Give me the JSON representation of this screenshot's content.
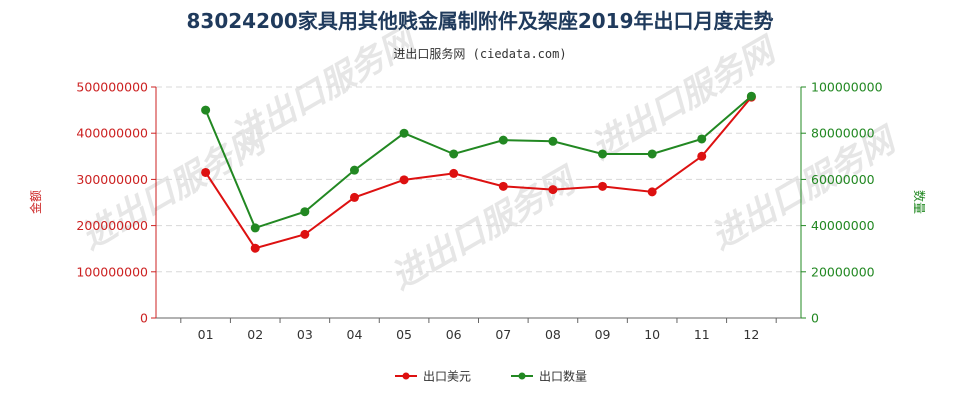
{
  "chart_data": {
    "type": "line",
    "title": "83024200家具用其他贱金属制附件及架座2019年出口月度走势",
    "subtitle": "进出口服务网 (ciedata.com)",
    "categories": [
      "01",
      "02",
      "03",
      "04",
      "05",
      "06",
      "07",
      "08",
      "09",
      "10",
      "11",
      "12"
    ],
    "y_left": {
      "label": "金额",
      "range": [
        0,
        500000000
      ],
      "ticks": [
        "0",
        "100000000",
        "200000000",
        "300000000",
        "400000000",
        "500000000"
      ],
      "color": "#dd1111"
    },
    "y_right": {
      "label": "数量",
      "range": [
        0,
        100000000
      ],
      "ticks": [
        "0",
        "20000000",
        "40000000",
        "60000000",
        "80000000",
        "100000000"
      ],
      "color": "#228822"
    },
    "series": [
      {
        "name": "出口美元",
        "axis": "left",
        "color": "#dd1111",
        "values": [
          315000000,
          151000000,
          181000000,
          261000000,
          299000000,
          313000000,
          285000000,
          278000000,
          285000000,
          273000000,
          350000000,
          478000000
        ]
      },
      {
        "name": "出口数量",
        "axis": "right",
        "color": "#228822",
        "values": [
          90000000,
          39000000,
          46000000,
          64000000,
          80000000,
          71000000,
          77000000,
          76500000,
          71000000,
          71000000,
          77500000,
          96000000
        ]
      }
    ],
    "grid": "horizontal",
    "legend_position": "bottom-center",
    "watermark": "进出口服务网"
  }
}
